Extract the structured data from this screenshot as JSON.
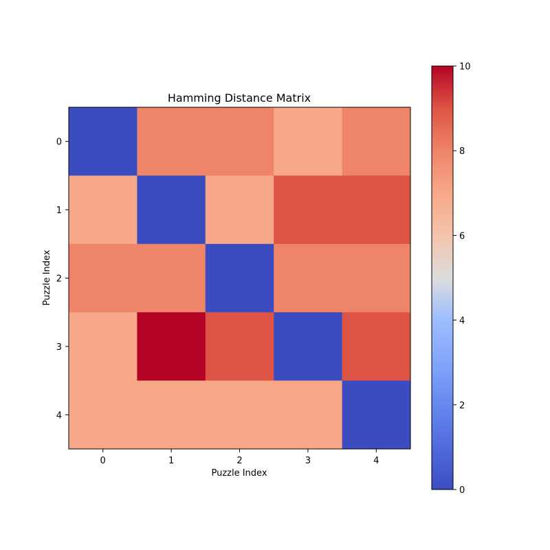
{
  "chart_data": {
    "type": "heatmap",
    "title": "Hamming Distance Matrix",
    "xlabel": "Puzzle Index",
    "ylabel": "Puzzle Index",
    "x_categories": [
      "0",
      "1",
      "2",
      "3",
      "4"
    ],
    "y_categories": [
      "0",
      "1",
      "2",
      "3",
      "4"
    ],
    "values": [
      [
        0,
        8,
        8,
        7,
        8
      ],
      [
        7,
        0,
        7,
        9,
        9
      ],
      [
        8,
        8,
        0,
        8,
        8
      ],
      [
        7,
        10,
        9,
        0,
        9
      ],
      [
        7,
        7,
        7,
        7,
        0
      ]
    ],
    "colormap": "coolwarm",
    "vmin": 0,
    "vmax": 10,
    "colorbar": {
      "ticks": [
        "0",
        "2",
        "4",
        "6",
        "8",
        "10"
      ],
      "position": "right"
    },
    "grid": false
  }
}
